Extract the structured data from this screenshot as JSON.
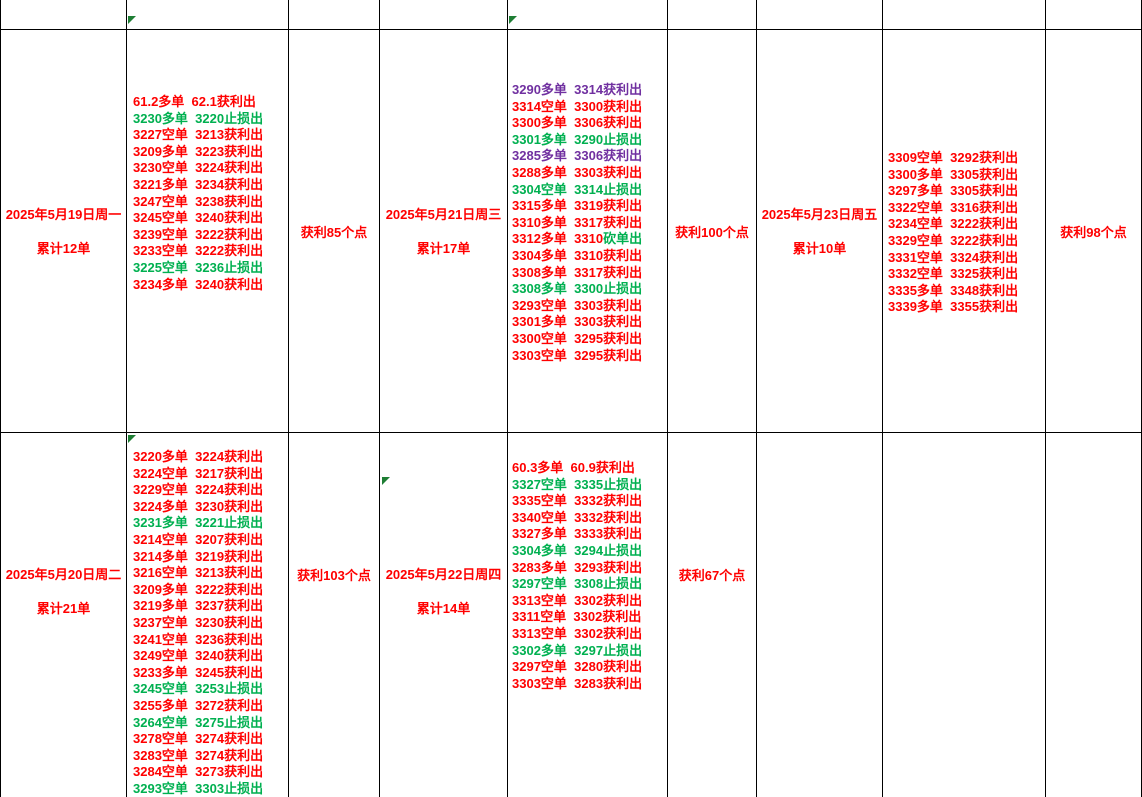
{
  "palette": {
    "red": "#FF0000",
    "green": "#00B050",
    "purple": "#7030A0",
    "grid_line": "#000000",
    "flag_green": "#1E7E34",
    "background": "#FFFFFF"
  },
  "icons": {
    "cell_flag": "green-corner-flag-triangle"
  },
  "panels": {
    "mon": {
      "date": "2025年5月19日周一",
      "total": "累计12单",
      "profit": "获利85个点"
    },
    "wed": {
      "date": "2025年5月21日周三",
      "total": "累计17单",
      "profit": "获利100个点"
    },
    "fri": {
      "date": "2025年5月23日周五",
      "total": "累计10单",
      "profit": "获利98个点"
    },
    "tue": {
      "date": "2025年5月20日周二",
      "total": "累计21单",
      "profit": "获利103个点"
    },
    "thu": {
      "date": "2025年5月22日周四",
      "total": "累计14单",
      "profit": "获利67个点"
    }
  },
  "trades": {
    "mon": [
      [
        [
          "61.2多单  62.1获利出",
          "red"
        ]
      ],
      [
        [
          "3230多单  3220止损出",
          "green"
        ]
      ],
      [
        [
          "3227空单  3213获利出",
          "red"
        ]
      ],
      [
        [
          "3209多单  3223获利出",
          "red"
        ]
      ],
      [
        [
          "3230空单  3224获利出",
          "red"
        ]
      ],
      [
        [
          "3221多单  3234获利出",
          "red"
        ]
      ],
      [
        [
          "3247空单  3238获利出",
          "red"
        ]
      ],
      [
        [
          "3245空单  3240获利出",
          "red"
        ]
      ],
      [
        [
          "3239空单  3222获利出",
          "red"
        ]
      ],
      [
        [
          "3233空单  3222获利出",
          "red"
        ]
      ],
      [
        [
          "3225空单  3236止损出",
          "green"
        ]
      ],
      [
        [
          "3234多单  3240获利出",
          "red"
        ]
      ]
    ],
    "wed": [
      [
        [
          "3290多单  3314获利出",
          "purple"
        ]
      ],
      [
        [
          "3314空单  3300获利出",
          "red"
        ]
      ],
      [
        [
          "3300多单  3306获利出",
          "red"
        ]
      ],
      [
        [
          "3301多单  3290止损出",
          "green"
        ]
      ],
      [
        [
          "3285多单  3306获利出",
          "purple"
        ]
      ],
      [
        [
          "3288多单  3303获利出",
          "red"
        ]
      ],
      [
        [
          "3304空单  3314止损出",
          "green"
        ]
      ],
      [
        [
          "3315多单  3319获利出",
          "red"
        ]
      ],
      [
        [
          "3310多单  3317获利出",
          "red"
        ]
      ],
      [
        [
          "3312多单  3310",
          "red"
        ],
        [
          "砍单出",
          "green"
        ]
      ],
      [
        [
          "3304多单  3310获利出",
          "red"
        ]
      ],
      [
        [
          "3308多单  3317获利出",
          "red"
        ]
      ],
      [
        [
          "3308多单  3300止损出",
          "green"
        ]
      ],
      [
        [
          "3293空单  3303获利出",
          "red"
        ]
      ],
      [
        [
          "3301多单  3303获利出",
          "red"
        ]
      ],
      [
        [
          "3300空单  3295获利出",
          "red"
        ]
      ],
      [
        [
          "3303空单  3295获利出",
          "red"
        ]
      ]
    ],
    "fri": [
      [
        [
          "3309空单  3292获利出",
          "red"
        ]
      ],
      [
        [
          "3300多单  3305获利出",
          "red"
        ]
      ],
      [
        [
          "3297多单  3305获利出",
          "red"
        ]
      ],
      [
        [
          "3322空单  3316获利出",
          "red"
        ]
      ],
      [
        [
          "3234空单  3222获利出",
          "red"
        ]
      ],
      [
        [
          "3329空单  3222获利出",
          "red"
        ]
      ],
      [
        [
          "3331空单  3324获利出",
          "red"
        ]
      ],
      [
        [
          "3332空单  3325获利出",
          "red"
        ]
      ],
      [
        [
          "3335多单  3348获利出",
          "red"
        ]
      ],
      [
        [
          "3339多单  3355获利出",
          "red"
        ]
      ]
    ],
    "tue": [
      [
        [
          "3220多单  3224获利出",
          "red"
        ]
      ],
      [
        [
          "3224空单  3217获利出",
          "red"
        ]
      ],
      [
        [
          "3229空单  3224获利出",
          "red"
        ]
      ],
      [
        [
          "3224多单  3230获利出",
          "red"
        ]
      ],
      [
        [
          "3231多单  3221止损出",
          "green"
        ]
      ],
      [
        [
          "3214空单  3207获利出",
          "red"
        ]
      ],
      [
        [
          "3214多单  3219获利出",
          "red"
        ]
      ],
      [
        [
          "3216空单  3213获利出",
          "red"
        ]
      ],
      [
        [
          "3209多单  3222获利出",
          "red"
        ]
      ],
      [
        [
          "3219多单  3237获利出",
          "red"
        ]
      ],
      [
        [
          "3237空单  3230获利出",
          "red"
        ]
      ],
      [
        [
          "3241空单  3236获利出",
          "red"
        ]
      ],
      [
        [
          "3249空单  3240获利出",
          "red"
        ]
      ],
      [
        [
          "3233多单  3245获利出",
          "red"
        ]
      ],
      [
        [
          "3245空单  3253止损出",
          "green"
        ]
      ],
      [
        [
          "3255多单  3272获利出",
          "red"
        ]
      ],
      [
        [
          "3264空单  3275止损出",
          "green"
        ]
      ],
      [
        [
          "3278空单  3274获利出",
          "red"
        ]
      ],
      [
        [
          "3283空单  3274获利出",
          "red"
        ]
      ],
      [
        [
          "3284空单  3273获利出",
          "red"
        ]
      ],
      [
        [
          "3293空单  3303止损出",
          "green"
        ]
      ]
    ],
    "thu": [
      [
        [
          "60.3多单  60.9获利出",
          "red"
        ]
      ],
      [
        [
          "3327空单  3335止损出",
          "green"
        ]
      ],
      [
        [
          "3335空单  3332获利出",
          "red"
        ]
      ],
      [
        [
          "3340空单  3332获利出",
          "red"
        ]
      ],
      [
        [
          "3327多单  3333获利出",
          "red"
        ]
      ],
      [
        [
          "3304多单  3294止损出",
          "green"
        ]
      ],
      [
        [
          "3283多单  3293获利出",
          "red"
        ]
      ],
      [
        [
          "3297空单  3308止损出",
          "green"
        ]
      ],
      [
        [
          "3313空单  3302获利出",
          "red"
        ]
      ],
      [
        [
          "3311空单  3302获利出",
          "red"
        ]
      ],
      [
        [
          "3313空单  3302获利出",
          "red"
        ]
      ],
      [
        [
          "3302多单  3297止损出",
          "green"
        ]
      ],
      [
        [
          "3297空单  3280获利出",
          "red"
        ]
      ],
      [
        [
          "3303空单  3283获利出",
          "red"
        ]
      ]
    ]
  }
}
